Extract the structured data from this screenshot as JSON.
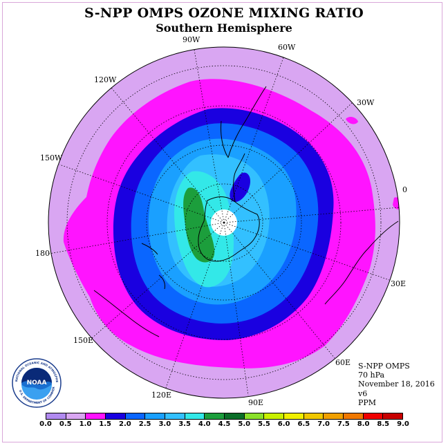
{
  "title": "S-NPP OMPS OZONE MIXING RATIO",
  "subtitle": "Southern Hemisphere",
  "longitude_labels": [
    "0",
    "30E",
    "60E",
    "90E",
    "120E",
    "150E",
    "180",
    "150W",
    "120W",
    "90W",
    "60W",
    "30W"
  ],
  "info": {
    "instrument": "S-NPP OMPS",
    "pressure_level": "70 hPa",
    "date": "November 18, 2016",
    "version": "v6",
    "units": "PPM"
  },
  "logo": {
    "name": "NOAA",
    "ring_text": "NATIONAL OCEANIC AND ATMOSPHERIC ADMINISTRATION",
    "bottom_text": "U.S. DEPARTMENT OF COMMERCE"
  },
  "colorbar": {
    "ticks": [
      "0.0",
      "0.5",
      "1.0",
      "1.5",
      "2.0",
      "2.5",
      "3.0",
      "3.5",
      "4.0",
      "4.5",
      "5.0",
      "5.5",
      "6.0",
      "6.5",
      "7.0",
      "7.5",
      "8.0",
      "8.5",
      "9.0"
    ],
    "colors": [
      "#b18af0",
      "#d9a6f2",
      "#ff14ff",
      "#1a00e0",
      "#0a66ff",
      "#1aa0ff",
      "#33c0ff",
      "#33e8e8",
      "#1c9e3c",
      "#0a6e28",
      "#8ae02a",
      "#c8f000",
      "#f0f000",
      "#f0c800",
      "#f0a000",
      "#f07800",
      "#f00000",
      "#c80000",
      "#8a5a3a"
    ]
  },
  "map_colors": {
    "0.5-1.0": "#d9a6f2",
    "1.0-1.5": "#ff14ff",
    "1.5-2.0": "#1a00e0",
    "2.0-2.5": "#0a66ff",
    "2.5-3.0": "#1aa0ff",
    "3.0-3.5": "#33c0ff",
    "3.5-4.0": "#33e8e8",
    "4.0-4.5": "#1c9e3c",
    "4.5-5.0": "#0a6e28",
    "pole": "#ffffff"
  }
}
